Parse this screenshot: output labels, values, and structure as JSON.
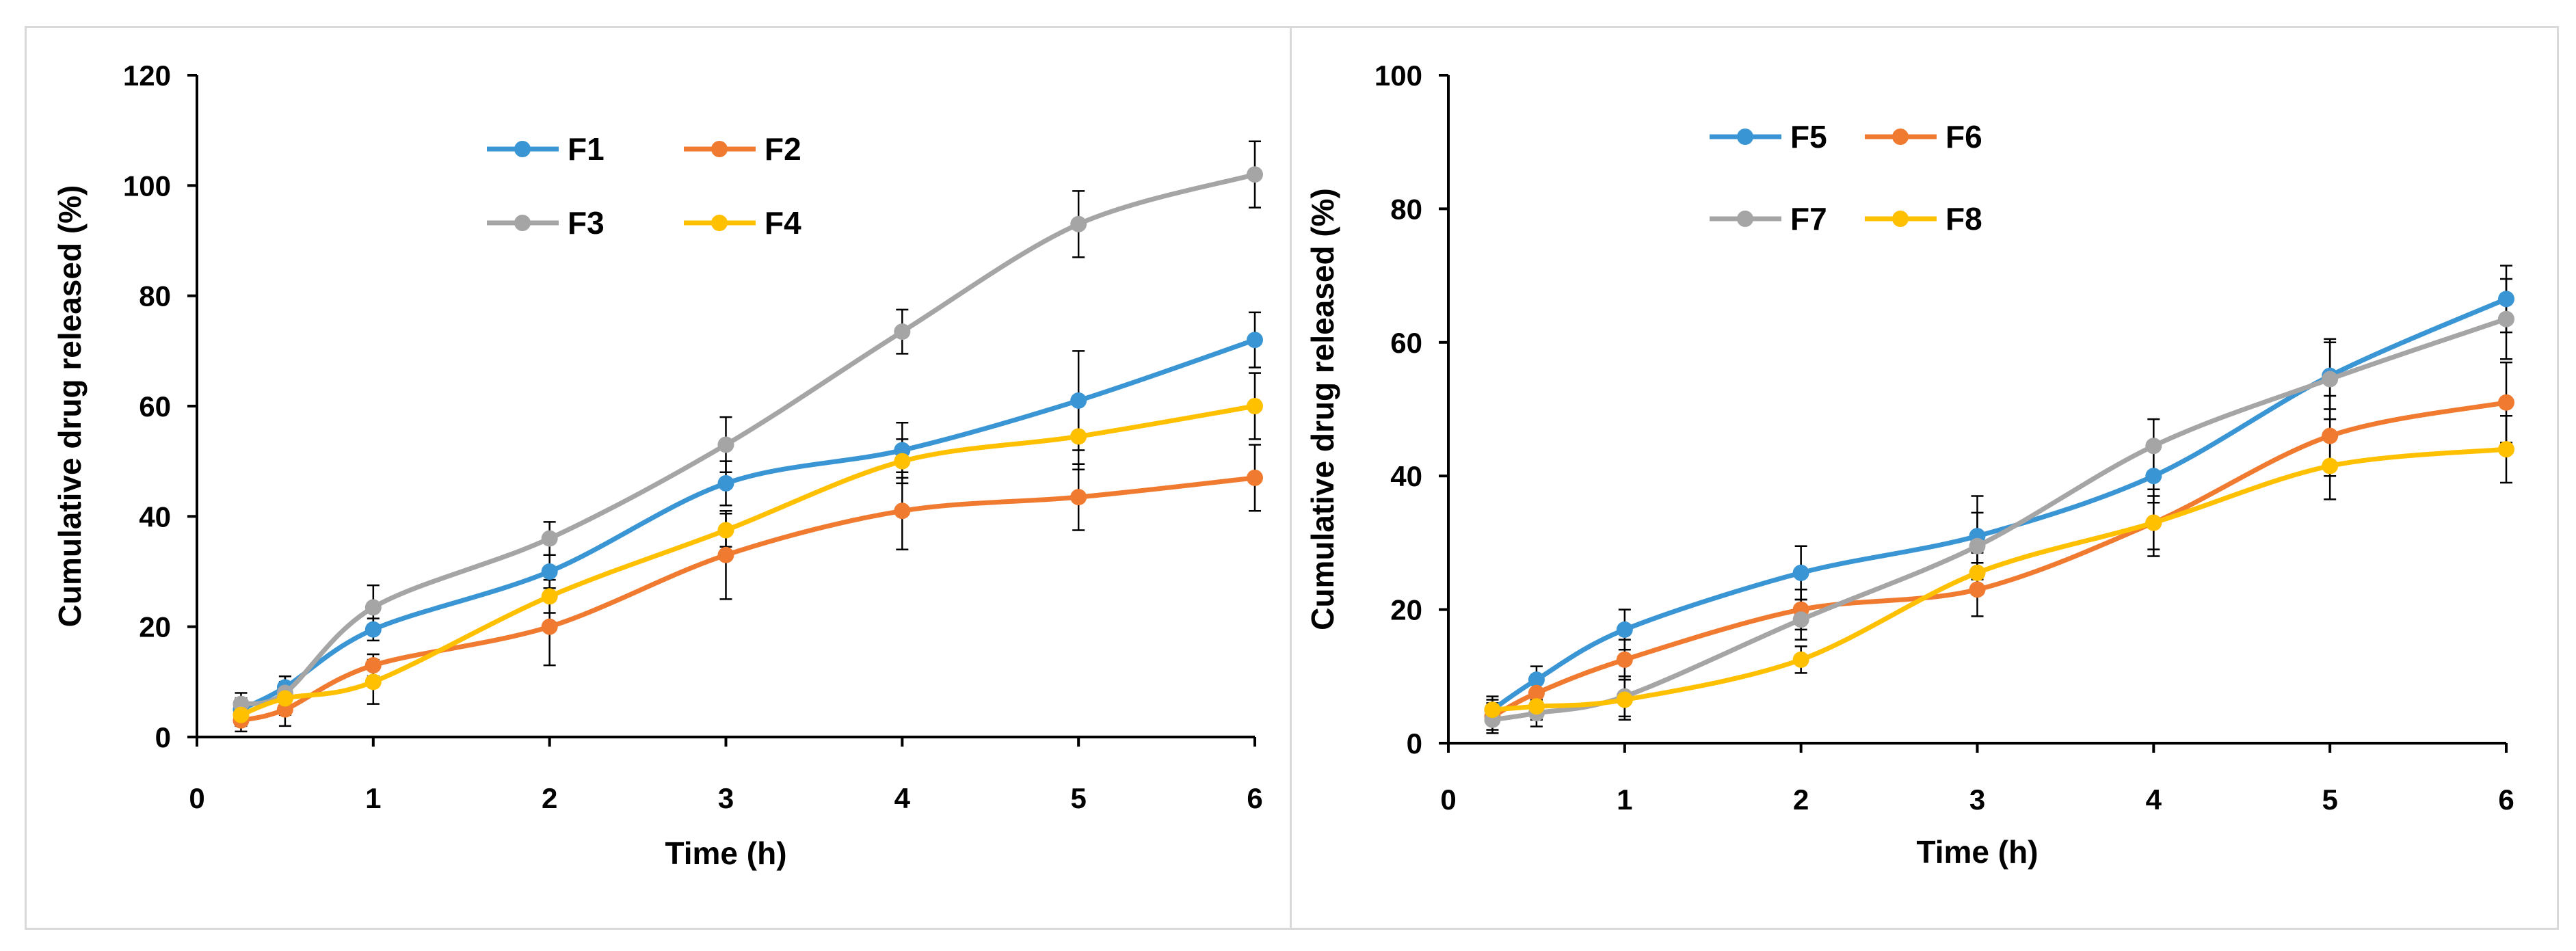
{
  "chart_data": [
    {
      "type": "line",
      "title": "",
      "xlabel": "Time (h)",
      "ylabel": "Cumulative drug released (%)",
      "xlim": [
        0,
        6
      ],
      "ylim": [
        0,
        120
      ],
      "xticks": [
        "0",
        "1",
        "2",
        "3",
        "4",
        "5",
        "6"
      ],
      "yticks": [
        "0",
        "20",
        "40",
        "60",
        "80",
        "100",
        "120"
      ],
      "legend": "top-center",
      "x": [
        0.25,
        0.5,
        1,
        2,
        3,
        4,
        5,
        6
      ],
      "series": [
        {
          "name": "F1",
          "color": "#3a95d4",
          "values": [
            5,
            9,
            19.5,
            30,
            46,
            52,
            61,
            72
          ],
          "errors": [
            2,
            2,
            2,
            3,
            4,
            5,
            9,
            5
          ]
        },
        {
          "name": "F2",
          "color": "#f07b30",
          "values": [
            3,
            5,
            13,
            20,
            33,
            41,
            43.5,
            47
          ],
          "errors": [
            2,
            3,
            2,
            7,
            8,
            7,
            6,
            6
          ]
        },
        {
          "name": "F3",
          "color": "#a5a5a5",
          "values": [
            6,
            8,
            23.5,
            36,
            53,
            73.5,
            93,
            102
          ],
          "errors": [
            2,
            3,
            4,
            3,
            5,
            4,
            6,
            6
          ]
        },
        {
          "name": "F4",
          "color": "#ffc000",
          "values": [
            4,
            7,
            10,
            25.5,
            37.5,
            50,
            54.5,
            60
          ],
          "errors": [
            2,
            3,
            4,
            3,
            3,
            4,
            6,
            6
          ]
        }
      ]
    },
    {
      "type": "line",
      "title": "",
      "xlabel": "Time (h)",
      "ylabel": "Cumulative drug released (%)",
      "xlim": [
        0,
        6
      ],
      "ylim": [
        0,
        100
      ],
      "xticks": [
        "0",
        "1",
        "2",
        "3",
        "4",
        "5",
        "6"
      ],
      "yticks": [
        "0",
        "20",
        "40",
        "60",
        "80",
        "100"
      ],
      "legend": "top-center",
      "x": [
        0.25,
        0.5,
        1,
        2,
        3,
        4,
        5,
        6
      ],
      "series": [
        {
          "name": "F5",
          "color": "#3a95d4",
          "values": [
            5,
            9.5,
            17,
            25.5,
            31,
            40,
            55,
            66.5
          ],
          "errors": [
            1.5,
            2,
            3,
            4,
            6,
            4,
            5,
            5
          ]
        },
        {
          "name": "F6",
          "color": "#f07b30",
          "values": [
            4,
            7.5,
            12.5,
            20,
            23,
            33,
            46,
            51
          ],
          "errors": [
            2,
            2,
            3,
            3,
            4,
            5,
            6,
            6
          ]
        },
        {
          "name": "F7",
          "color": "#a5a5a5",
          "values": [
            3.5,
            4.5,
            7,
            18.5,
            29.5,
            44.5,
            54.5,
            63.5
          ],
          "errors": [
            2,
            2,
            3,
            3,
            5,
            4,
            6,
            6
          ]
        },
        {
          "name": "F8",
          "color": "#ffc000",
          "values": [
            5,
            5.5,
            6.5,
            12.5,
            25.5,
            33,
            41.5,
            44
          ],
          "errors": [
            2,
            2,
            3,
            2,
            3,
            4,
            5,
            5
          ]
        }
      ]
    }
  ]
}
